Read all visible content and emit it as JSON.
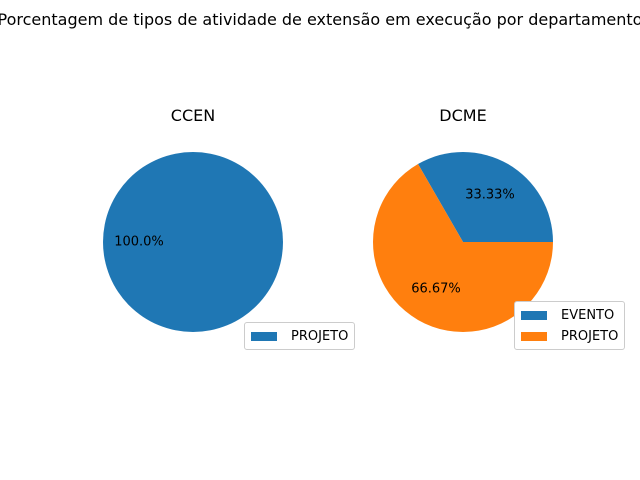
{
  "chart_data": {
    "suptitle": "Porcentagem de tipos de atividade de extensão em execução por departamento",
    "charts": [
      {
        "type": "pie",
        "title": "CCEN",
        "slices": [
          {
            "label": "PROJETO",
            "value": 100.0,
            "pct_label": "100.0%",
            "color": "#1f77b4"
          }
        ],
        "legend": [
          "PROJETO"
        ],
        "legend_position": "lower-right"
      },
      {
        "type": "pie",
        "title": "DCME",
        "slices": [
          {
            "label": "EVENTO",
            "value": 33.33,
            "pct_label": "33.33%",
            "color": "#1f77b4"
          },
          {
            "label": "PROJETO",
            "value": 66.67,
            "pct_label": "66.67%",
            "color": "#ff7f0e"
          }
        ],
        "legend": [
          "EVENTO",
          "PROJETO"
        ],
        "legend_position": "lower-right"
      }
    ]
  }
}
